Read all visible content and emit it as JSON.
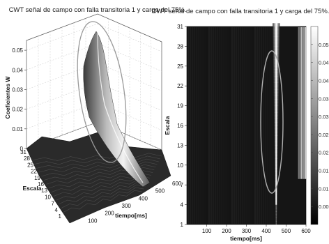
{
  "chart_data": [
    {
      "type": "surface3d",
      "title": "CWT señal de campo con falla transitoria 1 y carga del 75%.",
      "xlabel": "tiempo[ms]",
      "ylabel": "Escala",
      "zlabel": "Coeficientes W",
      "x_ticks": [
        "100",
        "200",
        "300",
        "400",
        "500",
        "600"
      ],
      "y_ticks": [
        "1",
        "4",
        "7",
        "10",
        "13",
        "16",
        "19",
        "22",
        "25",
        "28",
        "31"
      ],
      "z_ticks": [
        "0",
        "0.01",
        "0.02",
        "0.03",
        "0.04",
        "0.05"
      ],
      "xlim": [
        0,
        600
      ],
      "ylim": [
        1,
        31
      ],
      "zlim": [
        0,
        0.055
      ],
      "peak": {
        "x": 450,
        "y": 31,
        "z": 0.055
      },
      "highlight": "ellipse"
    },
    {
      "type": "heatmap",
      "title": "CWT señal de campo con falla transitoria 1 y carga del 75%.",
      "xlabel": "tiempo[ms]",
      "ylabel": "Escala",
      "x_ticks": [
        "100",
        "200",
        "300",
        "400",
        "500",
        "600"
      ],
      "y_ticks": [
        "1",
        "4",
        "7",
        "10",
        "13",
        "16",
        "19",
        "22",
        "25",
        "28",
        "31"
      ],
      "xlim": [
        0,
        600
      ],
      "ylim": [
        1,
        31
      ],
      "colorbar_ticks": [
        "0.005",
        "0.01",
        "0.015",
        "0.02",
        "0.025",
        "0.03",
        "0.035",
        "0.04",
        "0.045",
        "0.05"
      ],
      "colorbar_range": [
        0,
        0.055
      ],
      "peak": {
        "x": 450,
        "y": 31,
        "z": 0.055
      },
      "highlight": "ellipse"
    }
  ]
}
